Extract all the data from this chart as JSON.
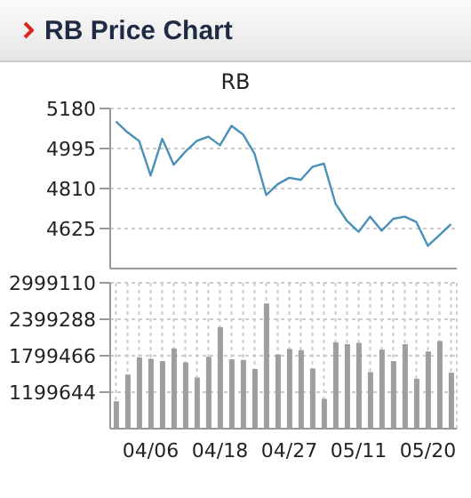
{
  "chart_data": [
    {
      "type": "line",
      "title": "RB Price Chart",
      "subtitle": "RB",
      "categories": [
        null,
        null,
        null,
        null,
        null,
        null,
        null,
        null,
        null,
        null,
        null,
        null,
        null,
        null,
        null,
        null,
        null,
        null,
        null,
        null,
        null,
        null,
        null,
        null,
        null,
        null,
        null,
        null,
        null,
        null
      ],
      "series": [
        {
          "color": "#4a90b8",
          "values": [
            5120,
            5070,
            5030,
            4870,
            5040,
            4920,
            4980,
            5030,
            5050,
            5010,
            5100,
            5060,
            4970,
            4780,
            4830,
            4860,
            4850,
            4910,
            4925,
            4740,
            4660,
            4610,
            4680,
            4615,
            4670,
            4680,
            4655,
            4545,
            4595,
            4645
          ]
        }
      ],
      "ylim": [
        4440,
        5180
      ],
      "yticks": [
        4625,
        4810,
        4995,
        5180
      ],
      "grid": "y",
      "tick_labels": "y",
      "marker": "none",
      "line_style": "solid"
    },
    {
      "type": "bar",
      "categories": [
        null,
        null,
        null,
        "04/06",
        null,
        null,
        null,
        null,
        null,
        "04/18",
        null,
        null,
        null,
        null,
        null,
        "04/27",
        null,
        null,
        null,
        null,
        null,
        "05/11",
        null,
        null,
        null,
        null,
        null,
        "05/20",
        null,
        null
      ],
      "series": [
        {
          "color": "#9e9e9e",
          "values": [
            1050000,
            1490000,
            1770000,
            1750000,
            1710000,
            1920000,
            1690000,
            1440000,
            1780000,
            2270000,
            1740000,
            1730000,
            1580000,
            2660000,
            1820000,
            1910000,
            1890000,
            1590000,
            1090000,
            2020000,
            1990000,
            2010000,
            1530000,
            1900000,
            1710000,
            1990000,
            1420000,
            1870000,
            2040000,
            1520000
          ]
        }
      ],
      "ylim": [
        599822,
        2999110
      ],
      "yticks": [
        1199644,
        1799466,
        2399288,
        2999110
      ],
      "grid": true
    }
  ]
}
